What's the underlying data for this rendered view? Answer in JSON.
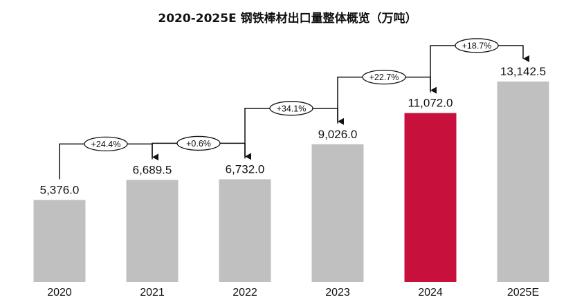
{
  "chart_data": {
    "type": "bar",
    "title": "2020-2025E 钢铁棒材出口量整体概览（万吨）",
    "categories": [
      "2020",
      "2021",
      "2022",
      "2023",
      "2024",
      "2025E"
    ],
    "values": [
      5376.0,
      6689.5,
      6732.0,
      9026.0,
      11072.0,
      13142.5
    ],
    "value_labels": [
      "5,376.0",
      "6,689.5",
      "6,732.0",
      "9,026.0",
      "11,072.0",
      "13,142.5"
    ],
    "growth_labels": [
      "+24.4%",
      "+0.6%",
      "+34.1%",
      "+22.7%",
      "+18.7%"
    ],
    "highlight_category": "2024",
    "colors": {
      "bar": "#c0c0c0",
      "highlight": "#c8103c",
      "arrow": "#111111"
    },
    "xlabel": "",
    "ylabel": "",
    "ylim": [
      0,
      16500
    ],
    "grid": false,
    "legend": "none"
  }
}
